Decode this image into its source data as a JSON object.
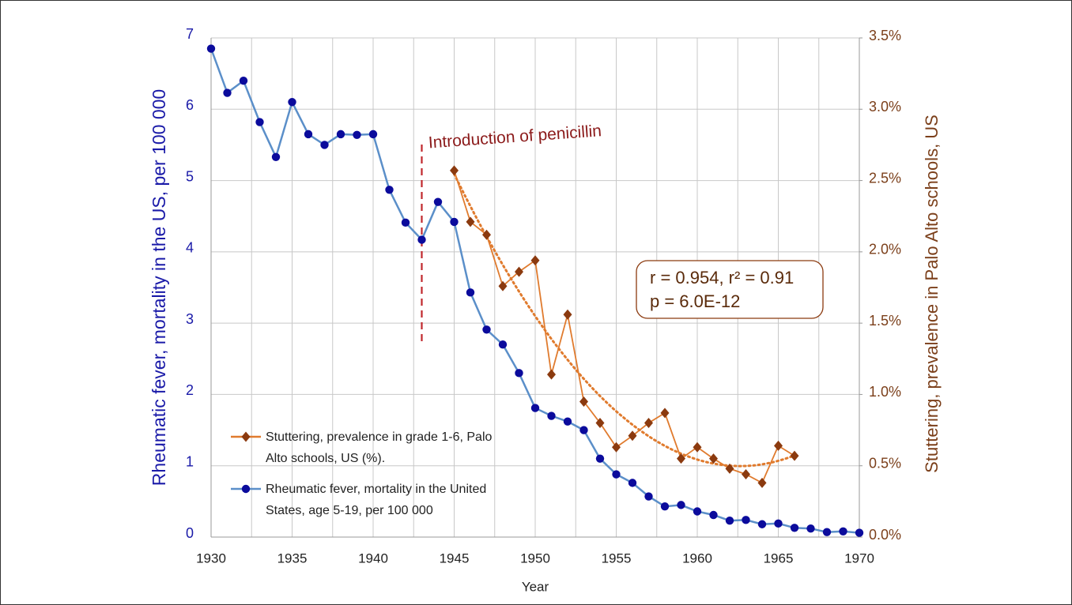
{
  "chart_data": {
    "type": "line",
    "x": [
      1930,
      1931,
      1932,
      1933,
      1934,
      1935,
      1936,
      1937,
      1938,
      1939,
      1940,
      1941,
      1942,
      1943,
      1944,
      1945,
      1946,
      1947,
      1948,
      1949,
      1950,
      1951,
      1952,
      1953,
      1954,
      1955,
      1956,
      1957,
      1958,
      1959,
      1960,
      1961,
      1962,
      1963,
      1964,
      1965,
      1966,
      1967,
      1968,
      1969,
      1970
    ],
    "series": [
      {
        "name": "Rheumatic fever, mortality in the United States, age 5-19, per 100 000",
        "color": "#5b8fc9",
        "marker_color": "#0b0b9c",
        "marker": "circle",
        "axis": "y",
        "x": [
          1930,
          1931,
          1932,
          1933,
          1934,
          1935,
          1936,
          1937,
          1938,
          1939,
          1940,
          1941,
          1942,
          1943,
          1944,
          1945,
          1946,
          1947,
          1948,
          1949,
          1950,
          1951,
          1952,
          1953,
          1954,
          1955,
          1956,
          1957,
          1958,
          1959,
          1960,
          1961,
          1962,
          1963,
          1964,
          1965,
          1966,
          1967,
          1968,
          1969,
          1970
        ],
        "values": [
          6.85,
          6.23,
          6.4,
          5.82,
          5.33,
          6.1,
          5.65,
          5.5,
          5.65,
          5.64,
          5.65,
          4.87,
          4.41,
          4.17,
          4.7,
          4.42,
          3.43,
          2.91,
          2.7,
          2.3,
          1.81,
          1.7,
          1.62,
          1.5,
          1.1,
          0.88,
          0.76,
          0.57,
          0.43,
          0.45,
          0.36,
          0.31,
          0.23,
          0.24,
          0.18,
          0.19,
          0.13,
          0.12,
          0.07,
          0.08,
          0.06
        ]
      },
      {
        "name": "Stuttering, prevalence in grade 1-6, Palo Alto schools, US (%).",
        "color": "#e07b2e",
        "marker_color": "#8b3a0f",
        "marker": "diamond",
        "axis": "y2",
        "trendline": "polynomial",
        "x": [
          1945,
          1946,
          1947,
          1948,
          1949,
          1950,
          1951,
          1952,
          1953,
          1954,
          1955,
          1956,
          1957,
          1958,
          1959,
          1960,
          1961,
          1962,
          1963,
          1964,
          1965,
          1966
        ],
        "values": [
          2.57,
          2.21,
          2.12,
          1.76,
          1.86,
          1.94,
          1.14,
          1.56,
          0.95,
          0.8,
          0.63,
          0.71,
          0.8,
          0.87,
          0.55,
          0.63,
          0.55,
          0.48,
          0.44,
          0.38,
          0.64,
          0.57
        ]
      }
    ],
    "xlabel": "Year",
    "ylabel": "Rheumatic fever, mortality in the US, per 100 000",
    "y2label": "Stuttering, prevalence in Palo Alto schools, US",
    "xlim": [
      1930,
      1970
    ],
    "xticks": [
      1930,
      1935,
      1940,
      1945,
      1950,
      1955,
      1960,
      1965,
      1970
    ],
    "xgrid": [
      1932.5,
      1937.5,
      1942.5,
      1947.5,
      1952.5,
      1957.5,
      1962.5,
      1967.5
    ],
    "ylim": [
      0,
      7
    ],
    "yticks": [
      0,
      1,
      2,
      3,
      4,
      5,
      6,
      7
    ],
    "y2lim": [
      0,
      3.5
    ],
    "y2ticks": [
      {
        "value": 0,
        "label": "0.0%"
      },
      {
        "value": 0.5,
        "label": "0.5%"
      },
      {
        "value": 1,
        "label": "1.0%"
      },
      {
        "value": 1.5,
        "label": "1.5%"
      },
      {
        "value": 2,
        "label": "2.0%"
      },
      {
        "value": 2.5,
        "label": "2.5%"
      },
      {
        "value": 3,
        "label": "3.0%"
      },
      {
        "value": 3.5,
        "label": "3.5%"
      }
    ],
    "grid": true,
    "legend": "lower left",
    "annotation": {
      "text": "Introduction of penicillin",
      "x": 1943
    },
    "stats": [
      "r = 0.954, r² = 0.91",
      "p = 6.0E-12"
    ]
  }
}
